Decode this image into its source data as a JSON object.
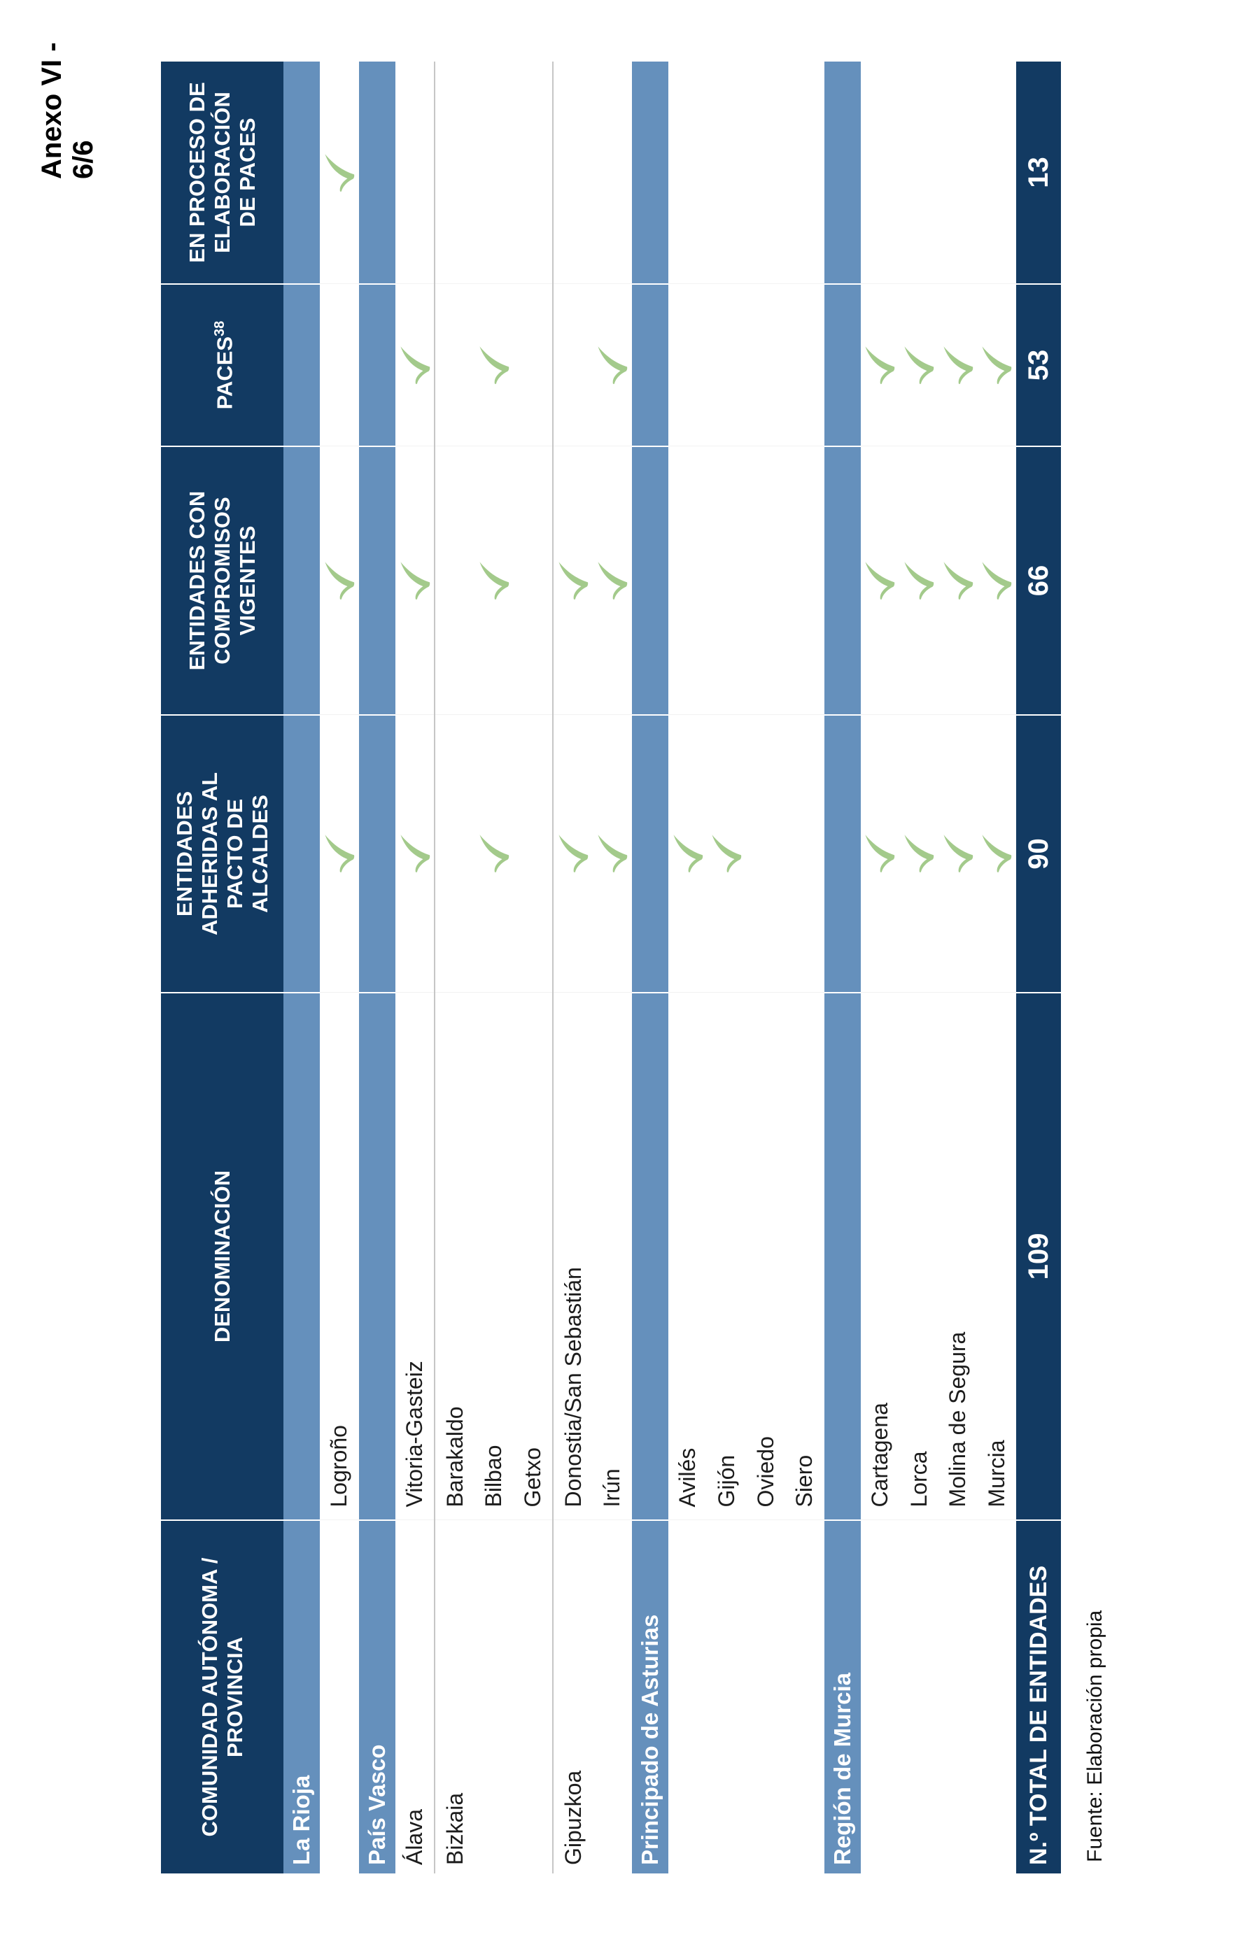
{
  "page": {
    "annex_label": "Anexo VI - 6/6",
    "source_note": "Fuente: Elaboración propia"
  },
  "colors": {
    "header_navy": "#123a62",
    "section_blue": "#6590bc",
    "check_green": "#a3ca8b",
    "separator_gray": "#c6c6c6",
    "text_black": "#1c1c1c",
    "text_white": "#ffffff"
  },
  "table": {
    "columns": [
      {
        "key": "comunidad",
        "label": "COMUNIDAD AUTÓNOMA /\nPROVINCIA"
      },
      {
        "key": "denominacion",
        "label": "DENOMINACIÓN"
      },
      {
        "key": "adheridas",
        "label": "ENTIDADES\nADHERIDAS AL\nPACTO DE\nALCALDES"
      },
      {
        "key": "compromisos",
        "label": "ENTIDADES CON\nCOMPROMISOS\nVIGENTES"
      },
      {
        "key": "paces",
        "label": "PACES",
        "superscript": "38"
      },
      {
        "key": "en_proceso",
        "label": "EN PROCESO DE\nELABORACIÓN\nDE PACES"
      }
    ],
    "rows": [
      {
        "type": "section",
        "label": "La Rioja"
      },
      {
        "type": "data",
        "comunidad": "",
        "denominacion": "Logroño",
        "adheridas": true,
        "compromisos": true,
        "paces": false,
        "en_proceso": true
      },
      {
        "type": "section",
        "label": "País Vasco"
      },
      {
        "type": "data",
        "comunidad": "Álava",
        "denominacion": "Vitoria-Gasteiz",
        "adheridas": true,
        "compromisos": true,
        "paces": true,
        "en_proceso": false,
        "group_end": true
      },
      {
        "type": "data",
        "comunidad": "Bizkaia",
        "denominacion": "Barakaldo",
        "adheridas": false,
        "compromisos": false,
        "paces": false,
        "en_proceso": false
      },
      {
        "type": "data",
        "comunidad": "",
        "denominacion": "Bilbao",
        "adheridas": true,
        "compromisos": true,
        "paces": true,
        "en_proceso": false
      },
      {
        "type": "data",
        "comunidad": "",
        "denominacion": "Getxo",
        "adheridas": false,
        "compromisos": false,
        "paces": false,
        "en_proceso": false,
        "group_end": true
      },
      {
        "type": "data",
        "comunidad": "Gipuzkoa",
        "denominacion": "Donostia/San Sebastián",
        "adheridas": true,
        "compromisos": true,
        "paces": false,
        "en_proceso": false
      },
      {
        "type": "data",
        "comunidad": "",
        "denominacion": "Irún",
        "adheridas": true,
        "compromisos": true,
        "paces": true,
        "en_proceso": false
      },
      {
        "type": "section",
        "label": "Principado de Asturias"
      },
      {
        "type": "data",
        "comunidad": "",
        "denominacion": "Avilés",
        "adheridas": true,
        "compromisos": false,
        "paces": false,
        "en_proceso": false
      },
      {
        "type": "data",
        "comunidad": "",
        "denominacion": "Gijón",
        "adheridas": true,
        "compromisos": false,
        "paces": false,
        "en_proceso": false
      },
      {
        "type": "data",
        "comunidad": "",
        "denominacion": "Oviedo",
        "adheridas": false,
        "compromisos": false,
        "paces": false,
        "en_proceso": false
      },
      {
        "type": "data",
        "comunidad": "",
        "denominacion": "Siero",
        "adheridas": false,
        "compromisos": false,
        "paces": false,
        "en_proceso": false
      },
      {
        "type": "section",
        "label": "Región de Murcia"
      },
      {
        "type": "data",
        "comunidad": "",
        "denominacion": "Cartagena",
        "adheridas": true,
        "compromisos": true,
        "paces": true,
        "en_proceso": false
      },
      {
        "type": "data",
        "comunidad": "",
        "denominacion": "Lorca",
        "adheridas": true,
        "compromisos": true,
        "paces": true,
        "en_proceso": false
      },
      {
        "type": "data",
        "comunidad": "",
        "denominacion": "Molina de Segura",
        "adheridas": true,
        "compromisos": true,
        "paces": true,
        "en_proceso": false
      },
      {
        "type": "data",
        "comunidad": "",
        "denominacion": "Murcia",
        "adheridas": true,
        "compromisos": true,
        "paces": true,
        "en_proceso": false
      }
    ],
    "totals": {
      "label": "N.º TOTAL DE ENTIDADES",
      "denominacion": "109",
      "adheridas": "90",
      "compromisos": "66",
      "paces": "53",
      "en_proceso": "13"
    }
  }
}
